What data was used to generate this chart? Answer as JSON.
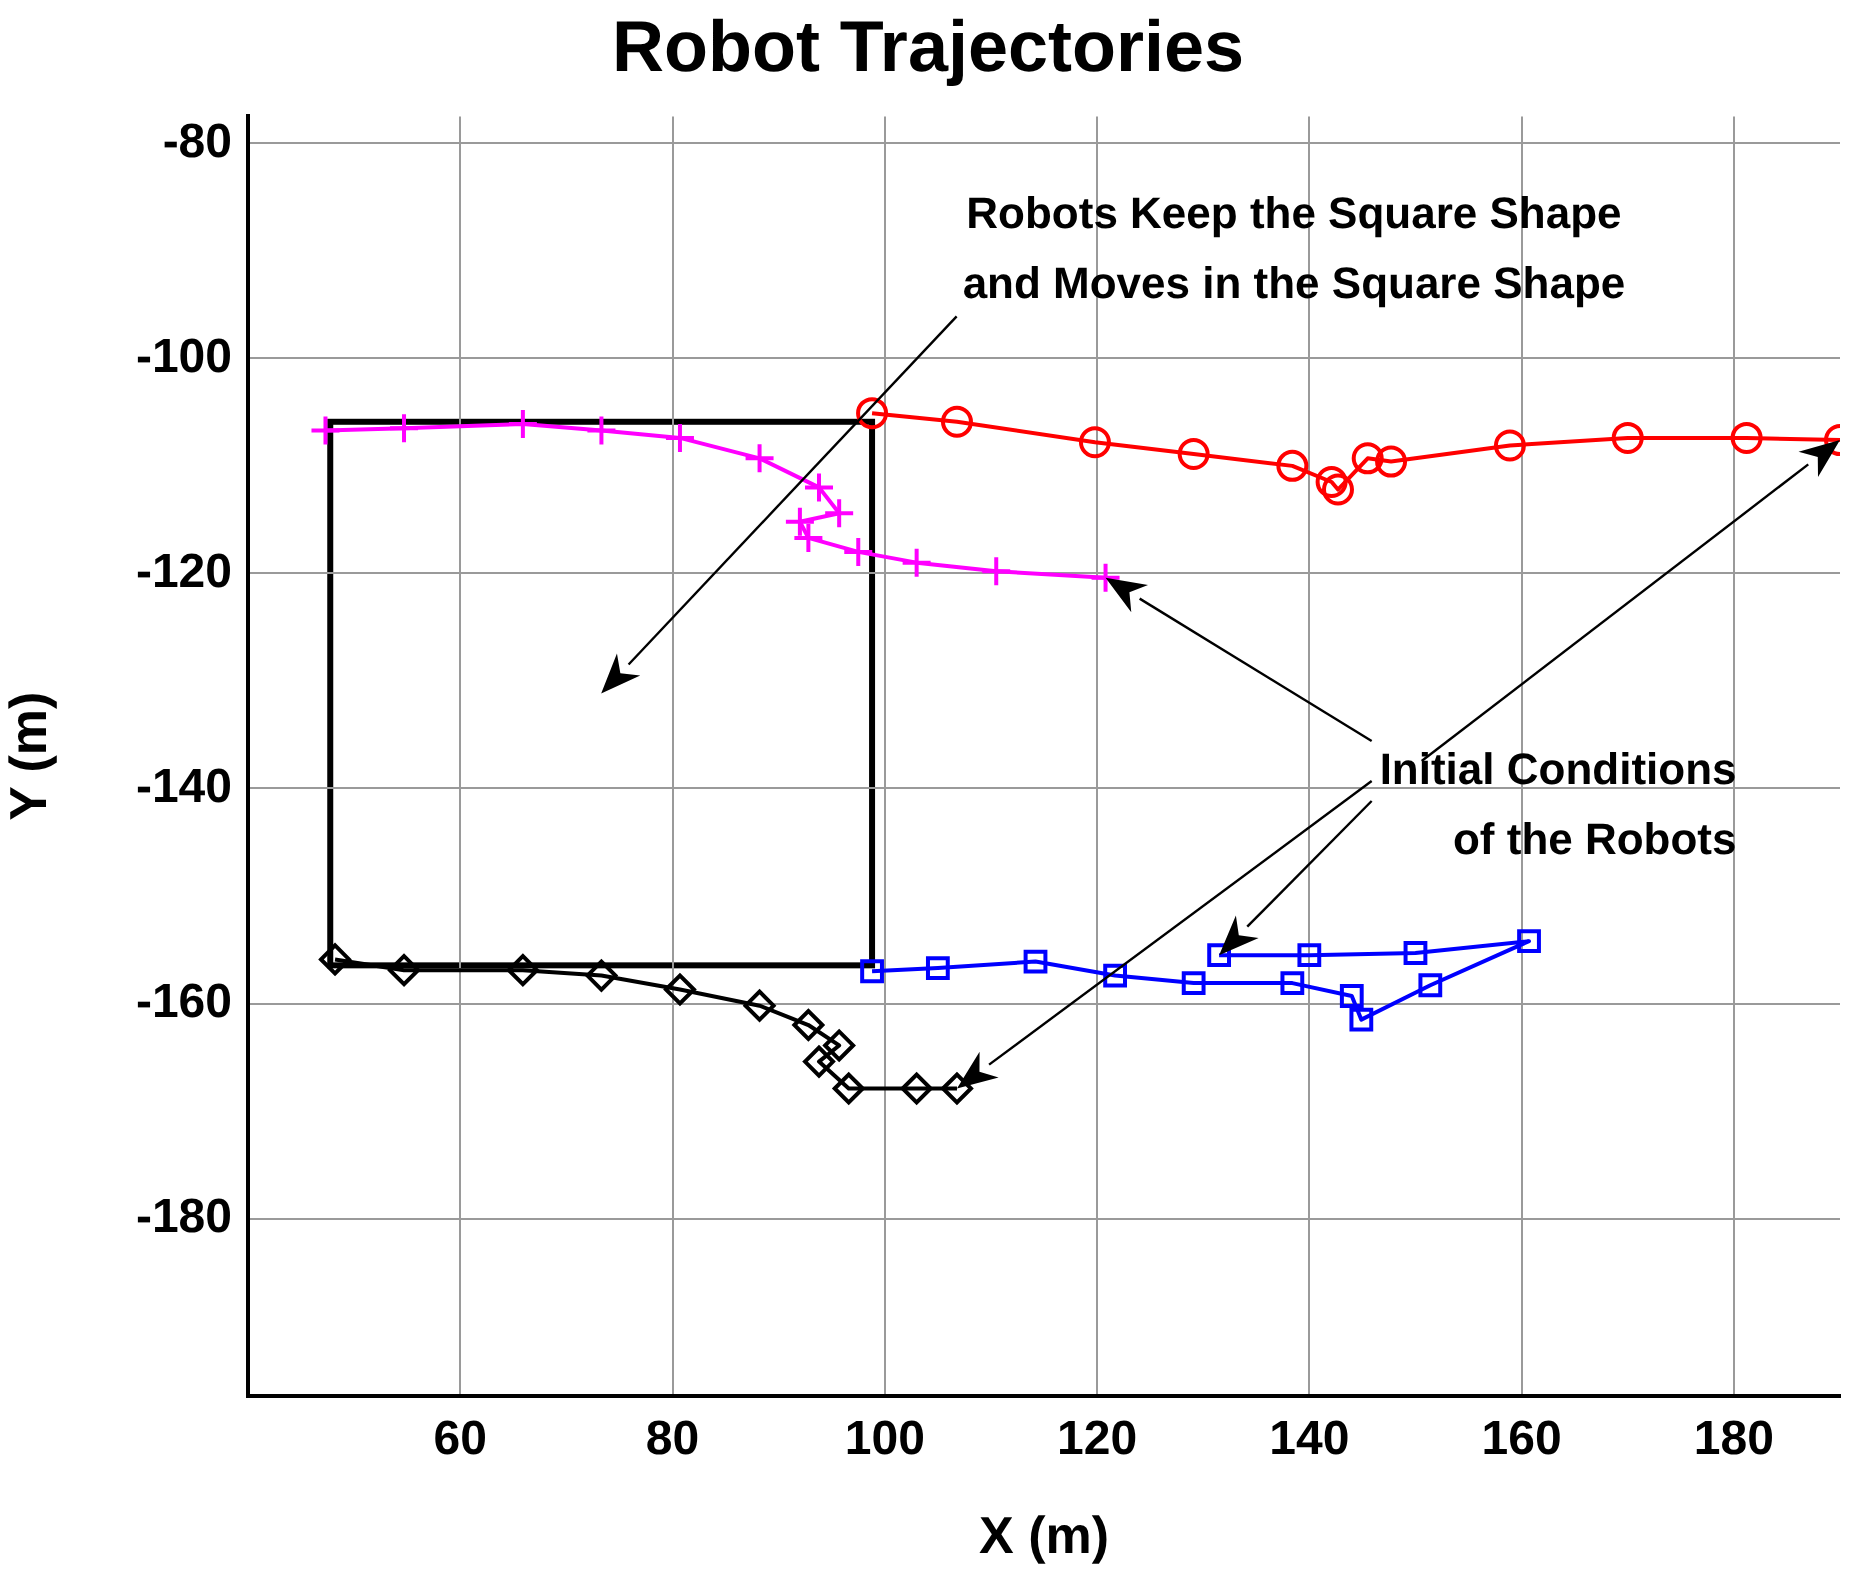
{
  "chart_data": {
    "type": "line",
    "title": "Robot Trajectories",
    "xlabel": "X (m)",
    "ylabel": "Y (m)",
    "xlim": [
      40,
      190
    ],
    "xticks": [
      60,
      80,
      100,
      120,
      140,
      160,
      180
    ],
    "ylim": [
      -196.5,
      -77.5
    ],
    "yticks": [
      -180,
      -160,
      -140,
      -120,
      -100,
      -80
    ],
    "grid": true,
    "legend": false,
    "line_style": "solid",
    "series": [
      {
        "type": "line",
        "marker": "cross",
        "color": "#ff00ff",
        "x": [
          120.8,
          110.5,
          103,
          97.5,
          92.8,
          92,
          95.7,
          93.8,
          88.2,
          80.7,
          73.3,
          65.9,
          54.7,
          47.3
        ],
        "values": [
          -120.4,
          -119.8,
          -119,
          -118,
          -116.7,
          -115.2,
          -114.4,
          -112,
          -109.3,
          -107.4,
          -106.7,
          -106.1,
          -106.5,
          -106.7
        ]
      },
      {
        "type": "line",
        "marker": "circle",
        "color": "#ff0000",
        "x": [
          190,
          181.2,
          170,
          158.9,
          147.7,
          145.5,
          142.7,
          142.1,
          138.4,
          129.1,
          119.8,
          106.8,
          98.8
        ],
        "values": [
          -107.6,
          -107.4,
          -107.4,
          -108.1,
          -109.6,
          -109.3,
          -112.2,
          -111.5,
          -110,
          -108.9,
          -107.8,
          -105.9,
          -105.1
        ]
      },
      {
        "type": "line",
        "marker": "diamond",
        "color": "#000000",
        "x": [
          106.8,
          103,
          96.6,
          93.8,
          95.7,
          92.8,
          88.2,
          80.7,
          73.3,
          65.9,
          54.7,
          48.2
        ],
        "values": [
          -167.9,
          -167.9,
          -167.9,
          -165.4,
          -163.9,
          -162,
          -160.2,
          -158.7,
          -157.4,
          -156.9,
          -156.9,
          -155.9
        ]
      },
      {
        "type": "line",
        "marker": "square",
        "color": "#0000ff",
        "x": [
          131.5,
          140,
          150,
          160.7,
          151.4,
          144.9,
          144,
          138.4,
          129.1,
          121.7,
          114.2,
          105,
          98.8
        ],
        "values": [
          -155.5,
          -155.5,
          -155.3,
          -154.2,
          -158.3,
          -161.5,
          -159.3,
          -158.1,
          -158.1,
          -157.4,
          -156.1,
          -156.7,
          -157
        ]
      }
    ],
    "annotations": [
      "Robots Keep the Square Shape\nand Moves in the Square Shape",
      "Initial Conditions\nof the Robots"
    ]
  }
}
